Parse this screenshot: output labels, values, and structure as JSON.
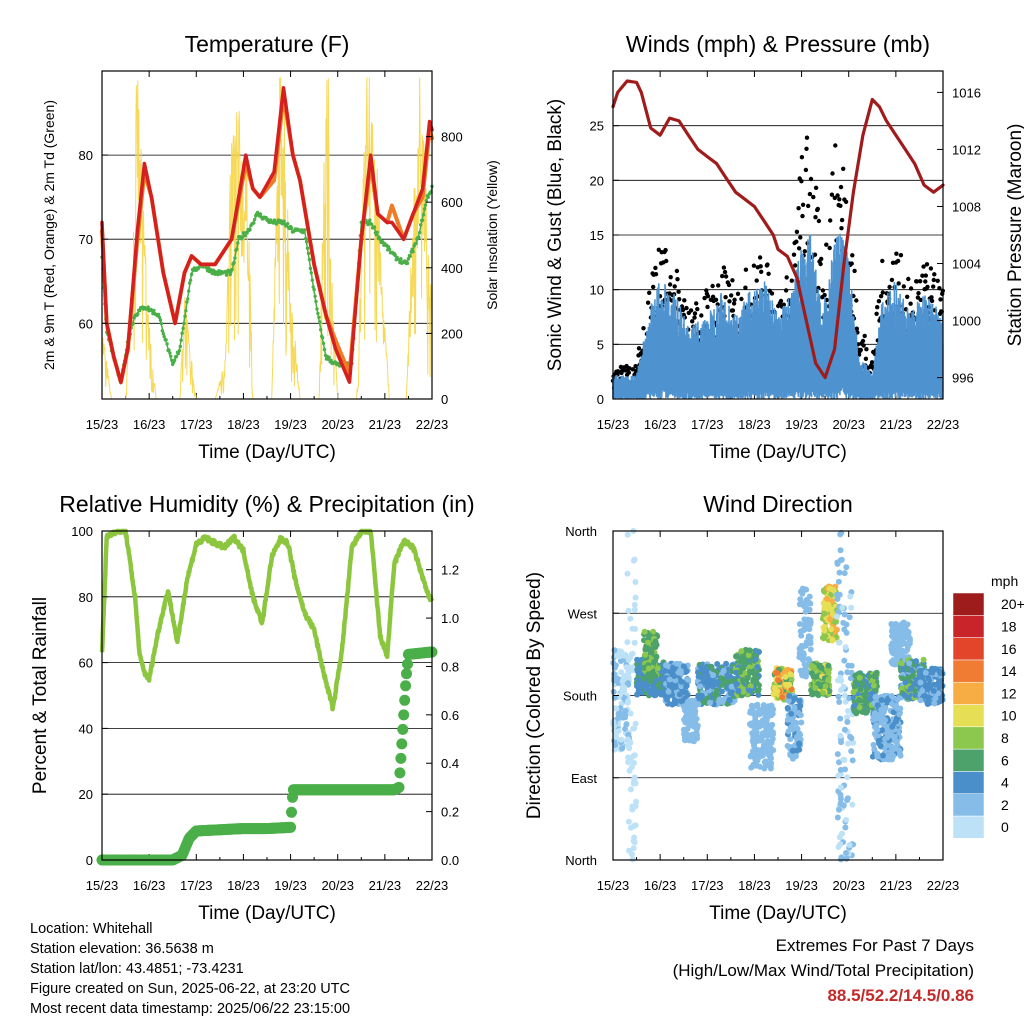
{
  "x_ticks": [
    "15/23",
    "16/23",
    "17/23",
    "18/23",
    "19/23",
    "20/23",
    "21/23",
    "22/23"
  ],
  "colors": {
    "t2m": "#d4201f",
    "t9m": "#f07b26",
    "td": "#4aaf48",
    "solar": "#f5d547",
    "gust": "#000000",
    "wind": "#4f93d0",
    "pressure": "#a01c1c",
    "rh": "#8cc63f",
    "precip": "#4aaf48",
    "extremes": "#c42a2a"
  },
  "info": {
    "location": "Location: Whitehall",
    "elevation": "Station elevation: 36.5638 m",
    "latlon": "Station lat/lon: 43.4851; -73.4231",
    "created": "Figure created on Sun, 2025-06-22, at 23:20 UTC",
    "latest": "Most recent data timestamp: 2025/06/22 23:15:00"
  },
  "extremes": {
    "line1": "Extremes For Past 7 Days",
    "line2": "(High/Low/Max Wind/Total Precipitation)",
    "values": "88.5/52.2/14.5/0.86"
  },
  "chart_data": [
    {
      "type": "line",
      "title": "Temperature (F)",
      "xlabel": "Time (Day/UTC)",
      "ylabel": "2m & 9m T (Red, Orange) & 2m Td (Green)",
      "ylabel_right": "Solar Insolation (Yellow)",
      "xlim": [
        0,
        7
      ],
      "ylim": [
        51,
        90
      ],
      "ylim_right": [
        0,
        1000
      ],
      "yticks": [
        60,
        70,
        80
      ],
      "yticks_right": [
        0,
        200,
        400,
        600,
        800
      ],
      "series": [
        {
          "key": "t2m",
          "x": [
            0,
            0.1,
            0.25,
            0.4,
            0.55,
            0.75,
            0.9,
            1.05,
            1.3,
            1.55,
            1.75,
            1.9,
            2.1,
            2.4,
            2.75,
            3.05,
            3.2,
            3.35,
            3.65,
            3.85,
            4.05,
            4.2,
            4.5,
            4.75,
            4.95,
            5.1,
            5.25,
            5.5,
            5.7,
            5.85,
            6.05,
            6.15,
            6.4,
            6.6,
            6.8,
            6.95,
            7
          ],
          "y": [
            72,
            60,
            56,
            53,
            57,
            71,
            79,
            75,
            66,
            60,
            66,
            68,
            67,
            67,
            70,
            80,
            76,
            75,
            78,
            88,
            80,
            77,
            67,
            61,
            57,
            55,
            53,
            70,
            80,
            73,
            72,
            72,
            70,
            73,
            76,
            84,
            83
          ]
        },
        {
          "key": "t9m",
          "x": [
            0,
            0.1,
            0.25,
            0.4,
            0.55,
            0.75,
            0.9,
            1.05,
            1.3,
            1.55,
            1.75,
            1.9,
            2.1,
            2.4,
            2.75,
            3.05,
            3.2,
            3.35,
            3.65,
            3.85,
            4.05,
            4.2,
            4.5,
            4.75,
            4.95,
            5.1,
            5.25,
            5.5,
            5.7,
            5.85,
            6.05,
            6.15,
            6.4,
            6.6,
            6.8,
            6.95,
            7
          ],
          "y": [
            71,
            60,
            56,
            53,
            57,
            70,
            78,
            75,
            66,
            60,
            66,
            68,
            67,
            67,
            70,
            79,
            76,
            75,
            77,
            87,
            80,
            77,
            67,
            61,
            58,
            56,
            54,
            70,
            79,
            73,
            72,
            74,
            70,
            73,
            75,
            83,
            82
          ]
        },
        {
          "key": "td",
          "x": [
            0,
            0.1,
            0.25,
            0.4,
            0.55,
            0.7,
            0.9,
            1.2,
            1.5,
            1.65,
            1.9,
            2.1,
            2.4,
            2.75,
            2.9,
            3.1,
            3.3,
            3.6,
            3.85,
            4.05,
            4.3,
            4.55,
            4.75,
            5.0,
            5.3,
            5.5,
            5.7,
            5.9,
            6.2,
            6.45,
            6.7,
            6.9,
            7
          ],
          "y": [
            68,
            59,
            56,
            53,
            58,
            61,
            62,
            61,
            55,
            57,
            66,
            67,
            66,
            66,
            70,
            71,
            73,
            72,
            72,
            71,
            71,
            62,
            56,
            55,
            55,
            72,
            72,
            70,
            68,
            67,
            70,
            75,
            76
          ]
        },
        {
          "key": "solar",
          "x": [
            0,
            0.2,
            0.35,
            0.5,
            0.65,
            0.75,
            0.8,
            0.9,
            1.0,
            1.15,
            1.3,
            1.5,
            1.65,
            1.75,
            1.85,
            1.9,
            2.0,
            2.2,
            2.4,
            2.6,
            2.75,
            2.85,
            3.0,
            3.1,
            3.2,
            3.4,
            3.6,
            3.75,
            3.8,
            3.85,
            3.9,
            4.0,
            4.2,
            4.4,
            4.6,
            4.7,
            4.75,
            4.8,
            4.85,
            5.0,
            5.2,
            5.4,
            5.55,
            5.65,
            5.75,
            5.8,
            5.95,
            6.1,
            6.3,
            6.45,
            6.6,
            6.7,
            6.75,
            6.85,
            6.9,
            7
          ],
          "y": [
            200,
            0,
            0,
            0,
            400,
            900,
            700,
            500,
            200,
            0,
            0,
            0,
            0,
            300,
            150,
            100,
            0,
            0,
            0,
            100,
            700,
            800,
            650,
            600,
            0,
            0,
            0,
            800,
            980,
            920,
            650,
            300,
            0,
            0,
            0,
            600,
            900,
            850,
            400,
            0,
            0,
            0,
            600,
            950,
            930,
            700,
            300,
            0,
            0,
            0,
            500,
            780,
            950,
            650,
            400,
            250
          ]
        }
      ]
    },
    {
      "type": "scatter",
      "title": "Winds (mph) & Pressure (mb)",
      "xlabel": "Time (Day/UTC)",
      "ylabel": "Sonic Wind & Gust (Blue, Black)",
      "ylabel_right": "Station Pressure (Maroon)",
      "xlim": [
        0,
        7
      ],
      "ylim": [
        0,
        30
      ],
      "ylim_right": [
        994.5,
        1017.5
      ],
      "yticks": [
        0,
        5,
        10,
        15,
        20,
        25
      ],
      "yticks_right": [
        996,
        1000,
        1004,
        1008,
        1012,
        1016
      ],
      "gust_envelope": {
        "x": [
          0,
          0.5,
          0.8,
          1.0,
          1.3,
          1.6,
          2.0,
          2.3,
          2.6,
          2.9,
          3.2,
          3.5,
          3.8,
          4.0,
          4.2,
          4.45,
          4.6,
          4.8,
          5.0,
          5.2,
          5.5,
          5.7,
          6.0,
          6.3,
          6.6,
          6.8,
          7
        ],
        "y": [
          3,
          3,
          12,
          14,
          12,
          8,
          10,
          12,
          10,
          12,
          13,
          9,
          12,
          22,
          25,
          11,
          20,
          24,
          20,
          7,
          4,
          12,
          14,
          10,
          13,
          11,
          10
        ]
      },
      "wind_envelope": {
        "x": [
          0,
          0.5,
          0.8,
          1.0,
          1.3,
          1.6,
          2.0,
          2.3,
          2.6,
          2.9,
          3.2,
          3.5,
          3.8,
          4.0,
          4.2,
          4.45,
          4.6,
          4.8,
          5.0,
          5.2,
          5.5,
          5.7,
          6.0,
          6.3,
          6.6,
          6.8,
          7
        ],
        "y": [
          2,
          2,
          8,
          10,
          9,
          6,
          7,
          9,
          7,
          9,
          10,
          7,
          9,
          13,
          14,
          7,
          12,
          14,
          12,
          4,
          2,
          8,
          10,
          7,
          9,
          8,
          7
        ]
      },
      "series": [
        {
          "key": "pressure",
          "x": [
            0,
            0.1,
            0.3,
            0.5,
            0.6,
            0.8,
            1.0,
            1.2,
            1.4,
            1.6,
            1.8,
            2.0,
            2.2,
            2.4,
            2.6,
            2.8,
            3.0,
            3.2,
            3.4,
            3.5,
            3.7,
            3.9,
            4.1,
            4.3,
            4.5,
            4.7,
            4.9,
            5.1,
            5.3,
            5.5,
            5.65,
            5.8,
            6.0,
            6.2,
            6.4,
            6.6,
            6.8,
            7
          ],
          "y": [
            1015,
            1016,
            1016.8,
            1016.7,
            1016,
            1013.5,
            1013,
            1014.2,
            1014,
            1013,
            1012,
            1011.5,
            1011,
            1010,
            1009,
            1008.5,
            1008,
            1007,
            1006,
            1005,
            1004.5,
            1003,
            1000,
            997,
            996,
            998,
            1004,
            1009,
            1013,
            1015.5,
            1015,
            1014,
            1013,
            1012,
            1011,
            1009.5,
            1009,
            1009.5
          ]
        }
      ]
    },
    {
      "type": "line",
      "title": "Relative Humidity (%) & Precipitation (in)",
      "xlabel": "Time (Day/UTC)",
      "ylabel": "Percent & Total Rainfall",
      "xlim": [
        0,
        7
      ],
      "ylim": [
        0,
        100
      ],
      "ylim_right": [
        0,
        1.36
      ],
      "yticks": [
        0,
        20,
        40,
        60,
        80,
        100
      ],
      "yticks_right": [
        0.0,
        0.2,
        0.4,
        0.6,
        0.8,
        1.0,
        1.2
      ],
      "series": [
        {
          "key": "rh",
          "x": [
            0,
            0.1,
            0.3,
            0.5,
            0.7,
            0.8,
            0.9,
            1.0,
            1.2,
            1.4,
            1.6,
            1.8,
            2.0,
            2.2,
            2.3,
            2.6,
            2.8,
            3.0,
            3.2,
            3.4,
            3.6,
            3.8,
            3.95,
            4.1,
            4.3,
            4.5,
            4.7,
            4.9,
            5.1,
            5.3,
            5.5,
            5.7,
            5.9,
            6.05,
            6.2,
            6.4,
            6.6,
            6.8,
            6.95,
            7
          ],
          "y": [
            63,
            98,
            100,
            100,
            80,
            62,
            57,
            55,
            70,
            82,
            66,
            85,
            96,
            98,
            97,
            95,
            98,
            94,
            80,
            72,
            92,
            98,
            96,
            85,
            75,
            70,
            57,
            46,
            65,
            95,
            100,
            100,
            68,
            62,
            90,
            97,
            95,
            86,
            79,
            80
          ]
        },
        {
          "key": "precip",
          "x": [
            0,
            1.5,
            1.7,
            1.85,
            2.0,
            2.5,
            3.0,
            3.5,
            4.0,
            4.05,
            4.5,
            5.0,
            5.5,
            6.0,
            6.2,
            6.3,
            6.35,
            6.4,
            6.45,
            6.5,
            7
          ],
          "y": [
            0,
            0,
            0.02,
            0.09,
            0.12,
            0.125,
            0.13,
            0.13,
            0.135,
            0.29,
            0.29,
            0.29,
            0.29,
            0.29,
            0.29,
            0.3,
            0.45,
            0.6,
            0.75,
            0.85,
            0.86
          ]
        }
      ]
    },
    {
      "type": "scatter",
      "title": "Wind Direction",
      "xlabel": "Time (Day/UTC)",
      "ylabel": "Direction (Colored By Speed)",
      "xlim": [
        0,
        7
      ],
      "ylim": [
        0,
        360
      ],
      "ytick_labels": [
        "North",
        "East",
        "South",
        "West",
        "North"
      ],
      "legend_title": "mph",
      "legend_levels": [
        "0",
        "2",
        "4",
        "6",
        "8",
        "10",
        "12",
        "14",
        "16",
        "18",
        "20+"
      ],
      "legend_colors": [
        "#bde1f7",
        "#86bde8",
        "#4a8fca",
        "#4da26b",
        "#8cc74e",
        "#e6de55",
        "#f7ad43",
        "#f07b33",
        "#e2452a",
        "#c8242a",
        "#9e1c1c"
      ],
      "clusters": [
        {
          "t0": 0,
          "t1": 0.35,
          "d": [
            120,
            230
          ],
          "s": [
            0,
            2
          ]
        },
        {
          "t0": 0.3,
          "t1": 0.5,
          "d": [
            0,
            360
          ],
          "s": [
            0,
            1
          ]
        },
        {
          "t0": 0.5,
          "t1": 1.1,
          "d": [
            180,
            220
          ],
          "s": [
            3,
            6
          ]
        },
        {
          "t0": 0.65,
          "t1": 0.95,
          "d": [
            200,
            250
          ],
          "s": [
            5,
            8
          ]
        },
        {
          "t0": 1.1,
          "t1": 1.6,
          "d": [
            170,
            215
          ],
          "s": [
            2,
            5
          ]
        },
        {
          "t0": 1.5,
          "t1": 1.8,
          "d": [
            130,
            175
          ],
          "s": [
            1,
            3
          ]
        },
        {
          "t0": 1.8,
          "t1": 2.6,
          "d": [
            170,
            215
          ],
          "s": [
            2,
            6
          ]
        },
        {
          "t0": 2.6,
          "t1": 3.1,
          "d": [
            180,
            230
          ],
          "s": [
            4,
            8
          ]
        },
        {
          "t0": 2.9,
          "t1": 3.4,
          "d": [
            100,
            170
          ],
          "s": [
            1,
            3
          ]
        },
        {
          "t0": 3.4,
          "t1": 3.8,
          "d": [
            175,
            210
          ],
          "s": [
            6,
            14
          ]
        },
        {
          "t0": 3.7,
          "t1": 4.0,
          "d": [
            110,
            180
          ],
          "s": [
            1,
            4
          ]
        },
        {
          "t0": 3.95,
          "t1": 4.2,
          "d": [
            200,
            300
          ],
          "s": [
            1,
            3
          ]
        },
        {
          "t0": 4.2,
          "t1": 4.6,
          "d": [
            180,
            215
          ],
          "s": [
            5,
            10
          ]
        },
        {
          "t0": 4.45,
          "t1": 4.75,
          "d": [
            240,
            300
          ],
          "s": [
            7,
            12
          ]
        },
        {
          "t0": 4.75,
          "t1": 5.1,
          "d": [
            0,
            360
          ],
          "s": [
            0,
            3
          ]
        },
        {
          "t0": 5.1,
          "t1": 5.6,
          "d": [
            160,
            205
          ],
          "s": [
            4,
            8
          ]
        },
        {
          "t0": 5.5,
          "t1": 6.1,
          "d": [
            110,
            180
          ],
          "s": [
            1,
            4
          ]
        },
        {
          "t0": 5.9,
          "t1": 6.3,
          "d": [
            210,
            260
          ],
          "s": [
            1,
            3
          ]
        },
        {
          "t0": 6.1,
          "t1": 6.6,
          "d": [
            175,
            220
          ],
          "s": [
            2,
            8
          ]
        },
        {
          "t0": 6.5,
          "t1": 7.0,
          "d": [
            170,
            210
          ],
          "s": [
            2,
            5
          ]
        }
      ]
    }
  ]
}
